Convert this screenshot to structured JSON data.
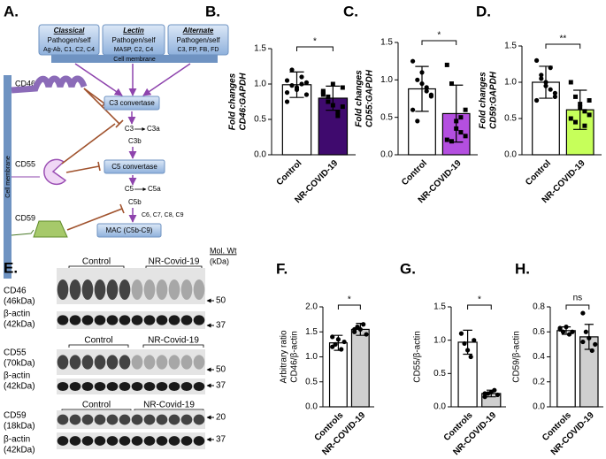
{
  "diagram": {
    "panel": "A.",
    "pathways": [
      {
        "name": "Classical",
        "trigger": "Pathogen/self",
        "factors": "Ag-Ab, C1, C2, C4"
      },
      {
        "name": "Lectin",
        "trigger": "Pathogen/self",
        "factors": "MASP, C2, C4"
      },
      {
        "name": "Alternate",
        "trigger": "Pathogen/self",
        "factors": "C3, FP, FB, FD"
      }
    ],
    "membrane_top": "Cell membrane",
    "membrane_side": "Cell membrane",
    "regulators": [
      "CD46",
      "CD55",
      "CD59"
    ],
    "nodes": [
      "C3 convertase",
      "C3",
      "C3a",
      "C3b",
      "C5 convertase",
      "C5",
      "C5a",
      "C5b",
      "C6, C7, C8, C9",
      "MAC (C5b-C9)"
    ]
  },
  "blots": {
    "panel": "E.",
    "mol_wt": "Mol. Wt",
    "mol_unit": "(kDa)",
    "sections": [
      {
        "protein": "CD46",
        "size": "(46kDa)",
        "loading": "β-actin",
        "loading_size": "(42kDa)",
        "groups": [
          "Control",
          "NR-Covid-19"
        ],
        "markers": [
          "50",
          "37"
        ]
      },
      {
        "protein": "CD55",
        "size": "(70kDa)",
        "loading": "β-actin",
        "loading_size": "(42kDa)",
        "groups": [
          "Control",
          "NR-Covid-19"
        ],
        "markers": [
          "50",
          "37"
        ]
      },
      {
        "protein": "CD59",
        "size": "(18kDa)",
        "loading": "β-actin",
        "loading_size": "(42kDa)",
        "groups": [
          "Control",
          "NR-Covid-19"
        ],
        "markers": [
          "20",
          "37"
        ]
      }
    ]
  },
  "chart_data": [
    {
      "type": "bar",
      "panel": "B.",
      "ylabel": [
        "Fold changes",
        "CD46:GAPDH"
      ],
      "categories": [
        "Control",
        "NR-COVID-19"
      ],
      "values": [
        0.99,
        0.8
      ],
      "errors": [
        0.18,
        0.17
      ],
      "colors": [
        "#ffffff",
        "#3f0a6e"
      ],
      "markers": [
        "circle",
        "square"
      ],
      "points": [
        [
          1.05,
          0.98,
          0.95,
          1.1,
          0.85,
          0.75,
          1.2,
          0.92,
          1.0,
          1.02,
          0.88
        ],
        [
          0.9,
          0.82,
          0.7,
          0.6,
          0.95,
          0.85,
          0.75,
          1.0,
          0.55,
          0.68,
          0.88
        ]
      ],
      "significance": "*",
      "ylim": [
        0,
        1.5
      ],
      "yticks": [
        {
          "value": 0,
          "label": "0.0"
        },
        0.5,
        {
          "value": 1,
          "label": "1.0"
        },
        1.5
      ]
    },
    {
      "type": "bar",
      "panel": "C.",
      "ylabel": [
        "Fold changes",
        "CD55:GAPDH"
      ],
      "categories": [
        "Control",
        "NR-COVID-19"
      ],
      "values": [
        0.88,
        0.55
      ],
      "errors": [
        0.3,
        0.38
      ],
      "colors": [
        "#ffffff",
        "#b44fe0"
      ],
      "markers": [
        "circle",
        "square"
      ],
      "points": [
        [
          1.25,
          1.0,
          0.95,
          0.85,
          0.78,
          0.6,
          0.45,
          1.1,
          0.9,
          0.8
        ],
        [
          1.2,
          0.95,
          0.45,
          0.3,
          0.25,
          0.2,
          0.18,
          0.35,
          0.5,
          0.6
        ]
      ],
      "significance": "*",
      "ylim": [
        0,
        1.5
      ],
      "yticks": [
        {
          "value": 0,
          "label": "0.0"
        },
        0.5,
        {
          "value": 1,
          "label": "1.0"
        },
        1.5
      ]
    },
    {
      "type": "bar",
      "panel": "D.",
      "ylabel": [
        "Fold changes",
        "CD59:GAPDH"
      ],
      "categories": [
        "Control",
        "NR-COVID-19"
      ],
      "values": [
        1.0,
        0.62
      ],
      "errors": [
        0.22,
        0.27
      ],
      "colors": [
        "#ffffff",
        "#c6ff5a"
      ],
      "markers": [
        "circle",
        "square"
      ],
      "points": [
        [
          1.3,
          1.1,
          1.0,
          0.9,
          0.85,
          0.75,
          1.05,
          0.95,
          1.2,
          0.8
        ],
        [
          1.0,
          0.8,
          0.7,
          0.6,
          0.55,
          0.5,
          0.45,
          0.65,
          0.4,
          0.75
        ]
      ],
      "significance": "**",
      "ylim": [
        0,
        1.5
      ],
      "yticks": [
        {
          "value": 0,
          "label": "0.0"
        },
        0.5,
        {
          "value": 1,
          "label": "1.0"
        },
        1.5
      ]
    },
    {
      "type": "bar",
      "panel": "F.",
      "ylabel": [
        "Arbitrary ratio",
        "CD46/β-actin"
      ],
      "categories": [
        "Controls",
        "NR-COVID-19"
      ],
      "values": [
        1.28,
        1.55
      ],
      "errors": [
        0.15,
        0.12
      ],
      "colors": [
        "#ffffff",
        "#cfcfcf"
      ],
      "markers": [
        "circle",
        "circle"
      ],
      "points": [
        [
          1.2,
          1.25,
          1.35,
          1.15,
          1.3,
          1.4
        ],
        [
          1.5,
          1.6,
          1.55,
          1.65,
          1.45,
          1.55
        ]
      ],
      "significance": "*",
      "ylim": [
        0,
        2
      ],
      "yticks": [
        {
          "value": 0,
          "label": "0.0"
        },
        0.5,
        {
          "value": 1,
          "label": "1.0"
        },
        1.5,
        {
          "value": 2,
          "label": "2.0"
        }
      ]
    },
    {
      "type": "bar",
      "panel": "G.",
      "ylabel": [
        "CD55/β-actin"
      ],
      "categories": [
        "Controls",
        "NR-COVID-19"
      ],
      "values": [
        0.97,
        0.2
      ],
      "errors": [
        0.18,
        0.05
      ],
      "colors": [
        "#ffffff",
        "#cfcfcf"
      ],
      "markers": [
        "circle",
        "circle"
      ],
      "points": [
        [
          1.1,
          0.95,
          0.85,
          0.75,
          1.0
        ],
        [
          0.15,
          0.2,
          0.22,
          0.25,
          0.18,
          0.2
        ]
      ],
      "significance": "*",
      "ylim": [
        0,
        1.5
      ],
      "yticks": [
        {
          "value": 0,
          "label": "0.0"
        },
        0.5,
        {
          "value": 1,
          "label": "1.0"
        },
        1.5
      ]
    },
    {
      "type": "bar",
      "panel": "H.",
      "ylabel": [
        "CD59/β-actin"
      ],
      "categories": [
        "Controls",
        "NR-COVID-19"
      ],
      "values": [
        0.61,
        0.56
      ],
      "errors": [
        0.03,
        0.1
      ],
      "colors": [
        "#ffffff",
        "#cfcfcf"
      ],
      "markers": [
        "circle",
        "circle"
      ],
      "points": [
        [
          0.62,
          0.6,
          0.64,
          0.58,
          0.6,
          0.63
        ],
        [
          0.75,
          0.6,
          0.55,
          0.45,
          0.5,
          0.52
        ]
      ],
      "significance": "ns",
      "ylim": [
        0,
        0.8
      ],
      "yticks": [
        {
          "value": 0,
          "label": "0.0"
        },
        0.2,
        0.4,
        0.6,
        0.8
      ]
    }
  ]
}
